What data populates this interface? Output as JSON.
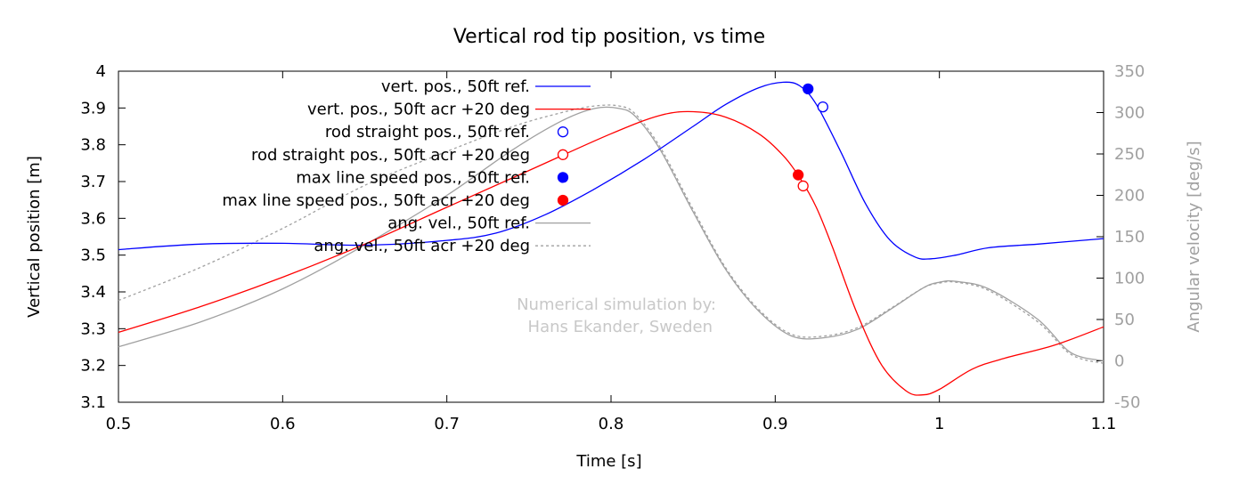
{
  "chart_data": {
    "type": "line",
    "title": "Vertical rod tip position, vs time",
    "xlabel": "Time [s]",
    "ylabel": "Vertical position [m]",
    "y2label": "Angular velocity [deg/s]",
    "xlim": [
      0.5,
      1.1
    ],
    "ylim": [
      3.1,
      4.0
    ],
    "y2lim": [
      -50,
      350
    ],
    "x_ticks": [
      "0.5",
      "0.6",
      "0.7",
      "0.8",
      "0.9",
      "1",
      "1.1"
    ],
    "y_ticks": [
      "3.1",
      "3.2",
      "3.3",
      "3.4",
      "3.5",
      "3.6",
      "3.7",
      "3.8",
      "3.9",
      "4"
    ],
    "y2_ticks": [
      "-50",
      "0",
      "50",
      "100",
      "150",
      "200",
      "250",
      "300",
      "350"
    ],
    "grid": false,
    "legend_position": "top-left",
    "annotation": [
      "Numerical simulation by:",
      "Hans Ekander, Sweden"
    ],
    "colors": {
      "blue": "#0000ff",
      "red": "#ff0000",
      "gray": "#a0a0a0"
    },
    "series": [
      {
        "name": "vert. pos., 50ft ref.",
        "axis": "y",
        "color": "#0000ff",
        "style": "solid",
        "x": [
          0.5,
          0.55,
          0.6,
          0.65,
          0.7,
          0.73,
          0.76,
          0.79,
          0.82,
          0.85,
          0.87,
          0.89,
          0.905,
          0.915,
          0.925,
          0.94,
          0.955,
          0.97,
          0.985,
          0.995,
          1.01,
          1.03,
          1.06,
          1.1
        ],
        "y": [
          3.515,
          3.53,
          3.532,
          3.527,
          3.54,
          3.56,
          3.61,
          3.68,
          3.76,
          3.85,
          3.91,
          3.955,
          3.97,
          3.96,
          3.91,
          3.78,
          3.64,
          3.54,
          3.495,
          3.49,
          3.5,
          3.52,
          3.53,
          3.545
        ]
      },
      {
        "name": "vert. pos., 50ft acr +20 deg",
        "axis": "y",
        "color": "#ff0000",
        "style": "solid",
        "x": [
          0.5,
          0.55,
          0.6,
          0.65,
          0.7,
          0.75,
          0.8,
          0.83,
          0.85,
          0.87,
          0.89,
          0.905,
          0.915,
          0.925,
          0.935,
          0.95,
          0.965,
          0.98,
          0.99,
          1.0,
          1.02,
          1.04,
          1.07,
          1.1
        ],
        "y": [
          3.29,
          3.36,
          3.44,
          3.53,
          3.63,
          3.73,
          3.83,
          3.88,
          3.89,
          3.875,
          3.83,
          3.77,
          3.71,
          3.63,
          3.52,
          3.34,
          3.2,
          3.13,
          3.12,
          3.135,
          3.19,
          3.22,
          3.255,
          3.305
        ]
      },
      {
        "name": "rod straight pos., 50ft ref.",
        "axis": "y",
        "color": "#0000ff",
        "marker": "open-circle",
        "points": [
          [
            0.929,
            3.903
          ]
        ]
      },
      {
        "name": "rod straight pos., 50ft acr +20 deg",
        "axis": "y",
        "color": "#ff0000",
        "marker": "open-circle",
        "points": [
          [
            0.917,
            3.688
          ]
        ]
      },
      {
        "name": "max line speed pos., 50ft ref.",
        "axis": "y",
        "color": "#0000ff",
        "marker": "filled-circle",
        "points": [
          [
            0.92,
            3.952
          ]
        ]
      },
      {
        "name": "max line speed pos., 50ft acr +20 deg",
        "axis": "y",
        "color": "#ff0000",
        "marker": "filled-circle",
        "points": [
          [
            0.914,
            3.718
          ]
        ]
      },
      {
        "name": "ang. vel., 50ft ref.",
        "axis": "y2",
        "color": "#a0a0a0",
        "style": "solid",
        "x": [
          0.5,
          0.55,
          0.6,
          0.65,
          0.7,
          0.74,
          0.77,
          0.79,
          0.805,
          0.815,
          0.83,
          0.85,
          0.87,
          0.89,
          0.91,
          0.93,
          0.95,
          0.97,
          0.99,
          1.0,
          1.01,
          1.03,
          1.06,
          1.08,
          1.1
        ],
        "y": [
          17,
          47,
          87,
          140,
          200,
          255,
          290,
          305,
          305,
          295,
          255,
          180,
          110,
          60,
          30,
          28,
          38,
          62,
          88,
          95,
          96,
          87,
          50,
          10,
          0
        ]
      },
      {
        "name": "ang. vel., 50ft acr +20 deg",
        "axis": "y2",
        "color": "#a0a0a0",
        "style": "dashed",
        "x": [
          0.5,
          0.55,
          0.6,
          0.65,
          0.7,
          0.74,
          0.77,
          0.79,
          0.805,
          0.815,
          0.83,
          0.85,
          0.87,
          0.89,
          0.91,
          0.93,
          0.95,
          0.97,
          0.99,
          1.0,
          1.01,
          1.03,
          1.06,
          1.08,
          1.1
        ],
        "y": [
          73,
          113,
          160,
          212,
          253,
          283,
          300,
          308,
          308,
          298,
          258,
          183,
          112,
          62,
          32,
          30,
          40,
          63,
          88,
          94,
          95,
          85,
          47,
          8,
          -3
        ]
      }
    ]
  }
}
